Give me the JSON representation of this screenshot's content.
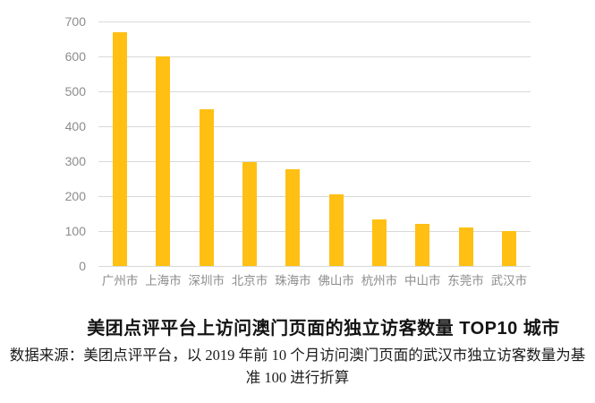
{
  "chart_data": {
    "type": "bar",
    "title": "美团点评平台上访问澳门页面的独立访客数量 TOP10 城市",
    "categories": [
      "广州市",
      "上海市",
      "深圳市",
      "北京市",
      "珠海市",
      "佛山市",
      "杭州市",
      "中山市",
      "东莞市",
      "武汉市"
    ],
    "values": [
      670,
      600,
      448,
      297,
      276,
      205,
      133,
      120,
      110,
      100
    ],
    "xlabel": "",
    "ylabel": "",
    "ylim": [
      0,
      700
    ],
    "ytick_step": 100,
    "yticks": [
      "0",
      "100",
      "200",
      "300",
      "400",
      "500",
      "600",
      "700"
    ],
    "grid": true,
    "legend_position": "none",
    "bar_color": "#ffc013",
    "gridline_color": "#d9d9d9",
    "tick_label_color": "#8c8c8c",
    "title_color": "#141414"
  },
  "source_note": {
    "line1": "数据来源：美团点评平台，以 2019 年前 10 个月访问澳门页面的武汉市独立访客数量为基",
    "line2": "准 100 进行折算"
  }
}
